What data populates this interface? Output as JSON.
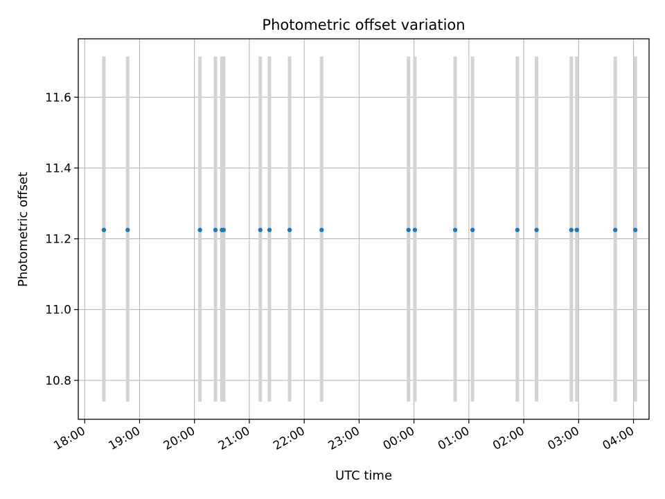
{
  "chart_data": {
    "type": "scatter",
    "title": "Photometric offset variation",
    "xlabel": "UTC time",
    "ylabel": "Photometric offset",
    "x_axis": {
      "kind": "time",
      "range": [
        "17:53",
        "04:17"
      ],
      "ticks": [
        "18:00",
        "19:00",
        "20:00",
        "21:00",
        "22:00",
        "23:00",
        "00:00",
        "01:00",
        "02:00",
        "03:00",
        "04:00"
      ]
    },
    "y_axis": {
      "range": [
        10.69,
        11.765
      ],
      "ticks": [
        "10.8",
        "11.0",
        "11.2",
        "11.4",
        "11.6"
      ]
    },
    "grid": true,
    "point_color": "#1f77b4",
    "errorbar_color": "#d3d3d3",
    "errorbar_range": [
      10.74,
      11.715
    ],
    "series": [
      {
        "x": [
          "18:21",
          "18:47",
          "20:06",
          "20:23",
          "20:30",
          "20:32",
          "21:12",
          "21:22",
          "21:44",
          "22:19",
          "23:54",
          "00:01",
          "00:45",
          "01:04",
          "01:53",
          "02:14",
          "02:52",
          "02:58",
          "03:40",
          "04:02"
        ],
        "y": [
          11.225,
          11.225,
          11.225,
          11.225,
          11.225,
          11.225,
          11.225,
          11.225,
          11.225,
          11.225,
          11.225,
          11.225,
          11.225,
          11.225,
          11.225,
          11.225,
          11.225,
          11.225,
          11.225,
          11.225
        ]
      }
    ]
  }
}
